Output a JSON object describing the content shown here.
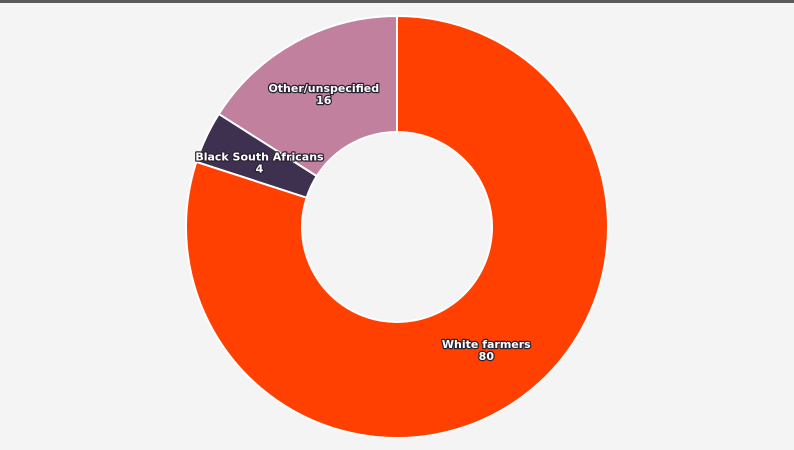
{
  "chart_data": {
    "type": "donut",
    "categories": [
      "White farmers",
      "Black South Africans",
      "Other/unspecified"
    ],
    "values": [
      80,
      4,
      16
    ],
    "colors": [
      "#ff4000",
      "#3e3150",
      "#c0809e"
    ]
  }
}
